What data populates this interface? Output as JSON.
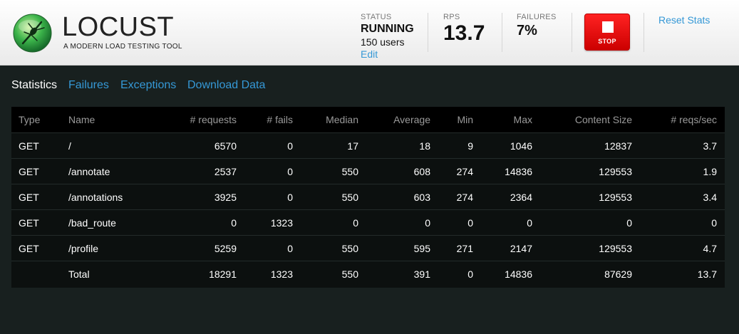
{
  "header": {
    "logo_text": "LOCUST",
    "logo_sub": "A MODERN LOAD TESTING TOOL",
    "status": {
      "label": "STATUS",
      "value": "RUNNING",
      "users": "150 users",
      "edit": "Edit"
    },
    "rps": {
      "label": "RPS",
      "value": "13.7"
    },
    "failures": {
      "label": "FAILURES",
      "value": "7%"
    },
    "stop_label": "STOP",
    "reset_label": "Reset Stats"
  },
  "tabs": [
    {
      "label": "Statistics",
      "active": true
    },
    {
      "label": "Failures",
      "active": false
    },
    {
      "label": "Exceptions",
      "active": false
    },
    {
      "label": "Download Data",
      "active": false
    }
  ],
  "table": {
    "headers": [
      "Type",
      "Name",
      "# requests",
      "# fails",
      "Median",
      "Average",
      "Min",
      "Max",
      "Content Size",
      "# reqs/sec"
    ],
    "rows": [
      [
        "GET",
        "/",
        "6570",
        "0",
        "17",
        "18",
        "9",
        "1046",
        "12837",
        "3.7"
      ],
      [
        "GET",
        "/annotate",
        "2537",
        "0",
        "550",
        "608",
        "274",
        "14836",
        "129553",
        "1.9"
      ],
      [
        "GET",
        "/annotations",
        "3925",
        "0",
        "550",
        "603",
        "274",
        "2364",
        "129553",
        "3.4"
      ],
      [
        "GET",
        "/bad_route",
        "0",
        "1323",
        "0",
        "0",
        "0",
        "0",
        "0",
        "0"
      ],
      [
        "GET",
        "/profile",
        "5259",
        "0",
        "550",
        "595",
        "271",
        "2147",
        "129553",
        "4.7"
      ],
      [
        "",
        "Total",
        "18291",
        "1323",
        "550",
        "391",
        "0",
        "14836",
        "87629",
        "13.7"
      ]
    ]
  },
  "colors": {
    "accent": "#3598d6",
    "stop": "#e00000",
    "background": "#18201f",
    "logo_green": "#3bb34a"
  },
  "icons": {
    "logo": "locust-logo-icon"
  }
}
